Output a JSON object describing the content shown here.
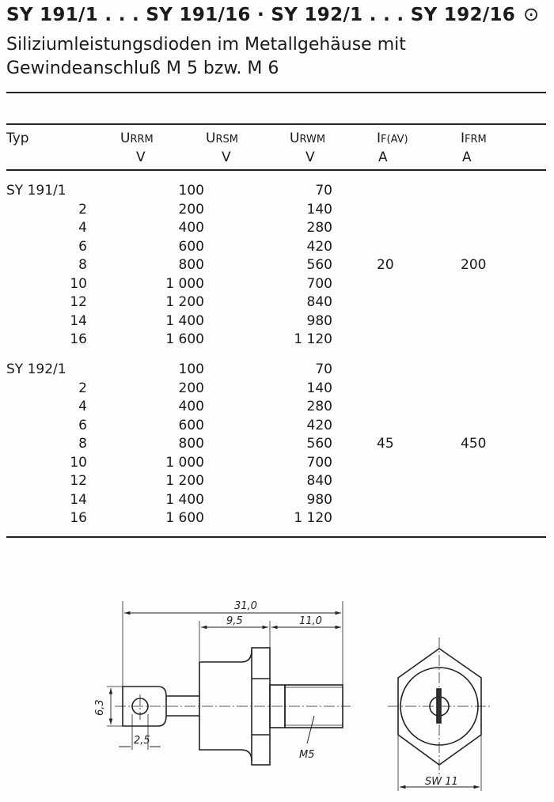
{
  "header": {
    "title": "SY 191/1 . . . SY 191/16 · SY 192/1 . . . SY 192/16",
    "symbol": "⊙",
    "subtitle_line1": "Siliziumleistungsdioden im Metallgehäuse mit",
    "subtitle_line2": "Gewindeanschluß M 5 bzw. M 6"
  },
  "table": {
    "columns": [
      {
        "name": "Typ",
        "sub": "",
        "unit": ""
      },
      {
        "name": "U",
        "sub": "RRM",
        "unit": "V"
      },
      {
        "name": "U",
        "sub": "RSM",
        "unit": "V"
      },
      {
        "name": "U",
        "sub": "RWM",
        "unit": "V"
      },
      {
        "name": "I",
        "sub": "F(AV)",
        "unit": "A"
      },
      {
        "name": "I",
        "sub": "FRM",
        "unit": "A"
      }
    ],
    "groups": [
      {
        "types": [
          "SY 191/1",
          "2",
          "4",
          "6",
          "8",
          "10",
          "12",
          "14",
          "16"
        ],
        "urrm": [
          "100",
          "200",
          "400",
          "600",
          "800",
          "1 000",
          "1 200",
          "1 400",
          "1 600"
        ],
        "urwm": [
          "70",
          "140",
          "280",
          "420",
          "560",
          "700",
          "840",
          "980",
          "1 120"
        ],
        "if_av": "20",
        "ifrm": "200"
      },
      {
        "types": [
          "SY 192/1",
          "2",
          "4",
          "6",
          "8",
          "10",
          "12",
          "14",
          "16"
        ],
        "urrm": [
          "100",
          "200",
          "400",
          "600",
          "800",
          "1 000",
          "1 200",
          "1 400",
          "1 600"
        ],
        "urwm": [
          "70",
          "140",
          "280",
          "420",
          "560",
          "700",
          "840",
          "980",
          "1 120"
        ],
        "if_av": "45",
        "ifrm": "450"
      }
    ]
  },
  "drawing": {
    "dim_total": "31,0",
    "dim_body": "9,5",
    "dim_thread": "11,0",
    "dim_lug": "6,3",
    "dim_hole": "2,5",
    "thread": "M5",
    "wrench": "SW 11"
  }
}
